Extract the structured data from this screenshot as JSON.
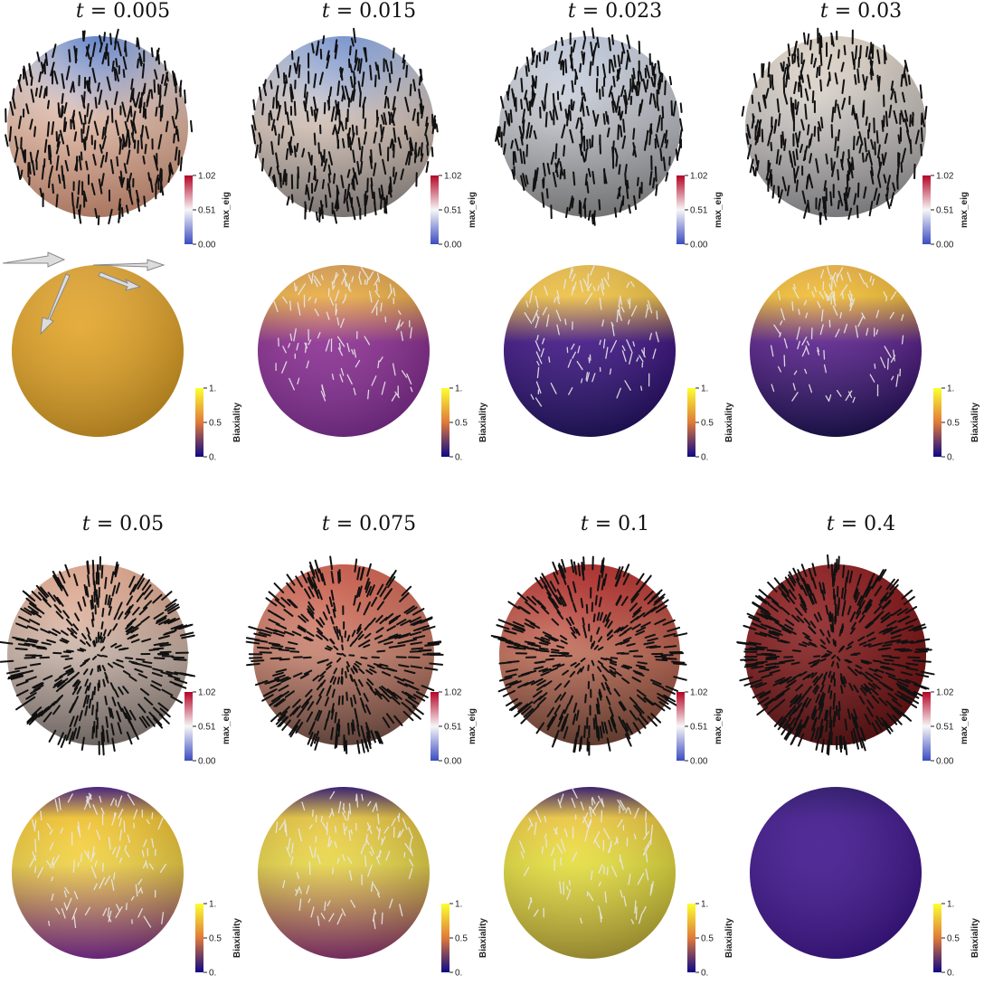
{
  "panels": [
    {
      "t": "0.005",
      "eig": {
        "top": "#d6d8e8",
        "mid": "#e2b6a0",
        "bot": "#c88a70",
        "cap": "#5f86d8"
      },
      "bx": {
        "top": "#e7a830",
        "mid": "#e0a020",
        "bot": "#d49820"
      },
      "bx_big_arrows": true
    },
    {
      "t": "0.015",
      "eig": {
        "top": "#b7c6e4",
        "mid": "#d3c0b4",
        "bot": "#8e8784",
        "cap": "#7d9ddf"
      },
      "bx": {
        "top": "#e0a050",
        "mid": "#8a2a90",
        "bot": "#7d2a92",
        "ring": "#f0b040"
      }
    },
    {
      "t": "0.023",
      "eig": {
        "top": "#d7dde8",
        "mid": "#b9bcc3",
        "bot": "#868686",
        "cap": "#c6d1e6"
      },
      "bx": {
        "top": "#f3c34a",
        "mid": "#3b0f82",
        "bot": "#1b0d5c",
        "ring": "#f6c640"
      }
    },
    {
      "t": "0.03",
      "eig": {
        "top": "#e6d9cb",
        "mid": "#c2bebb",
        "bot": "#8b8a8e",
        "cap": "#e8ddd0"
      },
      "bx": {
        "top": "#f4b640",
        "mid": "#561b8a",
        "bot": "#160b4e",
        "ring": "#f9c230"
      }
    },
    {
      "t": "0.05",
      "eig": {
        "top": "#e8a88a",
        "mid": "#c9b3a7",
        "bot": "#7e7470",
        "cap": "#eab096"
      },
      "bx": {
        "top": "#3b1080",
        "mid": "#f1d240",
        "bot": "#7b2491",
        "ring": "#f5c42a"
      }
    },
    {
      "t": "0.075",
      "eig": {
        "top": "#d76451",
        "mid": "#c67e69",
        "bot": "#6d4b41",
        "cap": "#d35a47"
      },
      "bx": {
        "top": "#2a0e6f",
        "mid": "#e9d844",
        "bot": "#8b2d70",
        "ring": "#e8c43a"
      }
    },
    {
      "t": "0.1",
      "eig": {
        "top": "#b92a26",
        "mid": "#c06a54",
        "bot": "#6e4334",
        "cap": "#b42724"
      },
      "bx": {
        "top": "#2c0e6a",
        "mid": "#e6e03a",
        "bot": "#b7a535",
        "ring": "#f0c93a"
      }
    },
    {
      "t": "0.4",
      "eig": {
        "top": "#8e1416",
        "mid": "#7c1314",
        "bot": "#5a1112",
        "cap": "#8e1416"
      },
      "bx": {
        "top": "#250c6a",
        "mid": "#3a108a",
        "bot": "#3a108a",
        "ring": "#3a108a"
      }
    }
  ],
  "legends": {
    "eig": {
      "title": "max_eig",
      "ticks": [
        "1.02",
        "0.51",
        "0.00"
      ],
      "colors": [
        "#b40426",
        "#f7f7f7",
        "#3b4cc0"
      ]
    },
    "bx": {
      "title": "Biaxiality",
      "ticks": [
        "1.",
        "0.5",
        "0."
      ],
      "colors": [
        "#fcff30",
        "#e07a3a",
        "#0d0887"
      ]
    }
  }
}
